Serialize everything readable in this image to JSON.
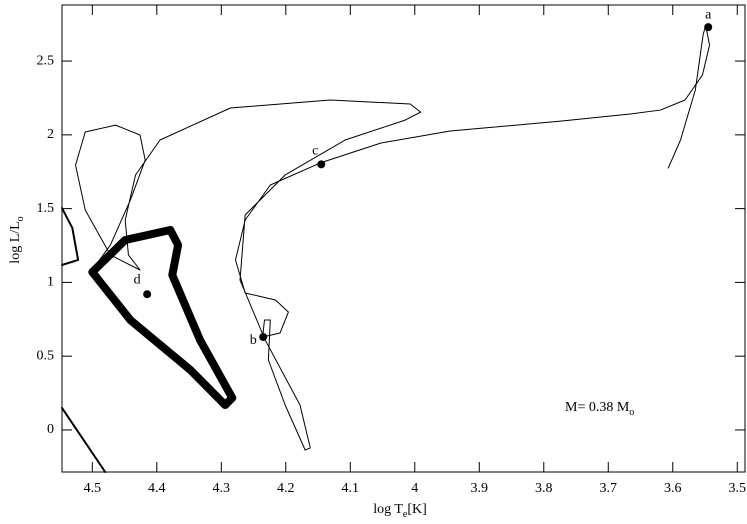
{
  "chart_data": {
    "type": "line",
    "x_label": [
      "log T",
      "e",
      "[K]"
    ],
    "y_label": [
      "log L/L",
      "o"
    ],
    "annotation": [
      "M= 0.38 M",
      "o"
    ],
    "xlim": [
      4.547,
      3.488
    ],
    "ylim": [
      -0.285,
      2.88
    ],
    "xticks": [
      4.5,
      4.4,
      4.3,
      4.2,
      4.1,
      4,
      3.9,
      3.8,
      3.7,
      3.6,
      3.5
    ],
    "yticks": [
      0,
      0.5,
      1,
      1.5,
      2,
      2.5
    ],
    "color": "#000000",
    "series": [
      {
        "color": "#000000",
        "width": 1,
        "x": [
          3.607,
          3.588,
          3.565,
          3.553,
          3.549,
          3.543,
          3.554,
          3.581,
          3.619,
          3.666,
          3.774,
          3.945,
          4.053,
          4.147,
          4.224,
          4.263,
          4.278,
          4.263,
          4.216,
          4.196,
          4.209,
          4.236,
          4.233,
          4.224,
          4.227,
          4.201,
          4.17,
          4.162,
          4.178,
          4.232,
          4.271,
          4.263,
          4.201,
          4.108,
          4.015,
          3.991,
          4.007,
          4.131,
          4.286,
          4.395,
          4.433,
          4.449,
          4.444,
          4.426,
          4.472,
          4.511,
          4.526,
          4.511,
          4.464,
          4.426,
          4.418,
          4.441,
          4.472,
          4.5
        ],
        "values": [
          1.775,
          1.965,
          2.304,
          2.676,
          2.744,
          2.608,
          2.405,
          2.236,
          2.168,
          2.141,
          2.093,
          2.026,
          1.944,
          1.809,
          1.66,
          1.423,
          1.152,
          0.928,
          0.881,
          0.799,
          0.657,
          0.63,
          0.745,
          0.745,
          0.474,
          0.169,
          -0.136,
          -0.122,
          0.169,
          0.61,
          1.016,
          1.457,
          1.728,
          1.965,
          2.1,
          2.154,
          2.209,
          2.236,
          2.182,
          1.965,
          1.728,
          1.423,
          1.186,
          1.084,
          1.186,
          1.491,
          1.795,
          2.019,
          2.066,
          1.999,
          1.829,
          1.558,
          1.253,
          1.084
        ]
      },
      {
        "color": "#000000",
        "width": 8,
        "x": [
          4.5,
          4.449,
          4.379,
          4.367,
          4.376,
          4.333,
          4.283,
          4.294,
          4.348,
          4.441,
          4.5
        ],
        "values": [
          1.07,
          1.287,
          1.355,
          1.253,
          1.05,
          0.61,
          0.217,
          0.169,
          0.407,
          0.745,
          1.07
        ]
      },
      {
        "color": "#000000",
        "width": 2,
        "x": [
          4.547,
          4.531,
          4.522,
          4.547,
          null,
          4.547,
          4.48
        ],
        "values": [
          1.504,
          1.369,
          1.152,
          1.118,
          null,
          0.149,
          -0.285
        ]
      }
    ],
    "points": {
      "labels": [
        "a",
        "b",
        "c",
        "d"
      ],
      "x": [
        3.545,
        4.235,
        4.145,
        4.415
      ],
      "values": [
        2.73,
        0.63,
        1.8,
        0.92
      ]
    }
  }
}
